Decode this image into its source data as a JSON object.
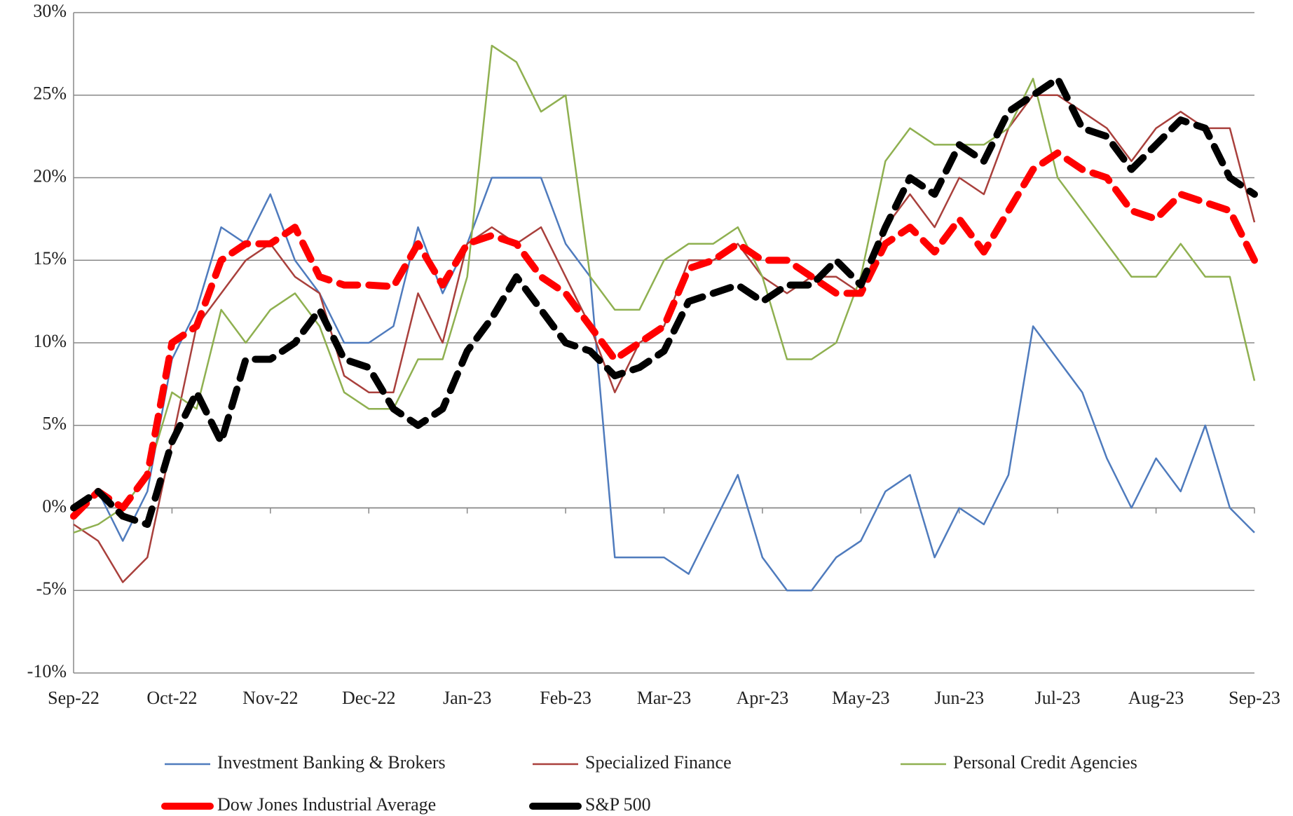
{
  "chart_data": {
    "type": "line",
    "legend": "bottom",
    "grid": true,
    "categories": [
      "Sep-22",
      null,
      null,
      null,
      "Oct-22",
      null,
      null,
      null,
      "Nov-22",
      null,
      null,
      null,
      "Dec-22",
      null,
      null,
      null,
      "Jan-23",
      null,
      null,
      null,
      "Feb-23",
      null,
      null,
      null,
      "Mar-23",
      null,
      null,
      null,
      "Apr-23",
      null,
      null,
      null,
      "May-23",
      null,
      null,
      null,
      "Jun-23",
      null,
      null,
      null,
      "Jul-23",
      null,
      null,
      null,
      "Aug-23",
      null,
      null,
      null,
      "Sep-23"
    ],
    "ylim": [
      -10,
      30
    ],
    "yticks": [
      {
        "value": -10,
        "label": "-10%"
      },
      {
        "value": -5,
        "label": "-5%"
      },
      {
        "value": 0,
        "label": "0%"
      },
      {
        "value": 5,
        "label": "5%"
      },
      {
        "value": 10,
        "label": "10%"
      },
      {
        "value": 15,
        "label": "15%"
      },
      {
        "value": 20,
        "label": "20%"
      },
      {
        "value": 25,
        "label": "25%"
      },
      {
        "value": 30,
        "label": "30%"
      }
    ],
    "series": [
      {
        "name": "Investment Banking & Brokers",
        "color": "#4f7bbd",
        "style": "solid",
        "values": [
          0,
          1,
          -2,
          1,
          9,
          12,
          17,
          16,
          19,
          15,
          13,
          10,
          10,
          11,
          17,
          13,
          16,
          20,
          20,
          20,
          16,
          14,
          -3,
          -3,
          -3,
          -4,
          -1,
          2,
          -3,
          -5,
          -5,
          -3,
          -2,
          1,
          2,
          -3,
          0,
          -1,
          2,
          11,
          9,
          7,
          3,
          0,
          3,
          1,
          5,
          0,
          -1.5
        ]
      },
      {
        "name": "Specialized Finance",
        "color": "#a9403c",
        "style": "solid",
        "values": [
          -1,
          -2,
          -4.5,
          -3,
          4,
          11,
          13,
          15,
          16,
          14,
          13,
          8,
          7,
          7,
          13,
          10,
          16,
          17,
          16,
          17,
          14,
          11,
          7,
          10,
          11,
          15,
          15,
          16,
          14,
          13,
          14,
          14,
          13,
          17,
          19,
          17,
          20,
          19,
          23,
          25,
          25,
          24,
          23,
          21,
          23,
          24,
          23,
          23,
          17.3
        ]
      },
      {
        "name": "Personal Credit Agencies",
        "color": "#8fb050",
        "style": "solid",
        "values": [
          -1.5,
          -1,
          0,
          2,
          7,
          6,
          12,
          10,
          12,
          13,
          11,
          7,
          6,
          6,
          9,
          9,
          14,
          28,
          27,
          24,
          25,
          14,
          12,
          12,
          15,
          16,
          16,
          17,
          14,
          9,
          9,
          10,
          14,
          21,
          23,
          22,
          22,
          22,
          23,
          26,
          20,
          18,
          16,
          14,
          14,
          16,
          14,
          14,
          7.7
        ]
      },
      {
        "name": "Dow Jones Industrial Average",
        "color": "#ff0000",
        "style": "dashed",
        "values": [
          -0.5,
          1,
          0,
          2,
          10,
          11,
          15,
          16,
          16,
          17,
          14,
          13.5,
          13.5,
          13.4,
          16,
          13.5,
          16,
          16.5,
          16,
          14,
          13,
          11,
          9,
          10,
          11,
          14.5,
          15,
          16,
          15,
          15,
          14,
          13,
          13,
          16,
          17,
          15.5,
          17.5,
          15.5,
          18,
          20.5,
          21.5,
          20.5,
          20,
          18,
          17.5,
          19,
          18.5,
          18,
          15
        ]
      },
      {
        "name": "S&P 500",
        "color": "#000000",
        "style": "dashed",
        "values": [
          0,
          1,
          -0.5,
          -1,
          4,
          7,
          4,
          9,
          9,
          10,
          12,
          9,
          8.5,
          6,
          5,
          6,
          9.5,
          11.5,
          14,
          12,
          10,
          9.5,
          8,
          8.5,
          9.5,
          12.5,
          13,
          13.5,
          12.5,
          13.5,
          13.5,
          15,
          13.5,
          17,
          20,
          19,
          22,
          21,
          24,
          25,
          26,
          23,
          22.5,
          20.5,
          22,
          23.5,
          23,
          20,
          19
        ]
      }
    ]
  }
}
